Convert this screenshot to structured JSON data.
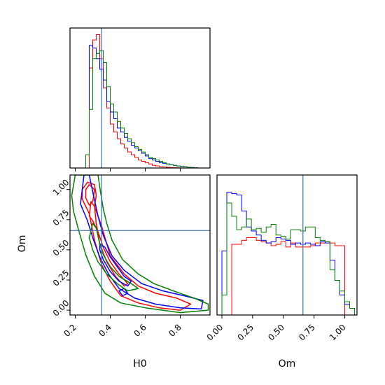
{
  "chart_data": {
    "type": "corner",
    "parameters": [
      "H0",
      "Om"
    ],
    "truth": {
      "H0": 0.35,
      "Om": 0.66
    },
    "truth_color": "#3a72b0",
    "series": [
      {
        "color": "#ff0000"
      },
      {
        "color": "#0000ff"
      },
      {
        "color": "#008000"
      }
    ],
    "h0_hist": {
      "type": "step-histogram",
      "xlim": [
        0.17,
        0.97
      ],
      "xticks": [
        0.2,
        0.4,
        0.6,
        0.8
      ],
      "bin_edges": [
        0.2,
        0.22,
        0.24,
        0.26,
        0.28,
        0.3,
        0.32,
        0.34,
        0.36,
        0.38,
        0.4,
        0.42,
        0.44,
        0.46,
        0.48,
        0.5,
        0.52,
        0.54,
        0.56,
        0.58,
        0.6,
        0.62,
        0.64,
        0.66,
        0.68,
        0.7,
        0.72,
        0.74,
        0.76,
        0.78,
        0.8,
        0.82,
        0.84,
        0.86,
        0.88,
        0.9,
        0.92,
        0.94
      ],
      "counts": [
        [
          0,
          0,
          0,
          0,
          0.75,
          0.96,
          1.0,
          0.82,
          0.6,
          0.45,
          0.33,
          0.27,
          0.22,
          0.18,
          0.15,
          0.12,
          0.1,
          0.08,
          0.06,
          0.05,
          0.04,
          0.03,
          0.02,
          0.015,
          0.01,
          0.008,
          0.005,
          0.003,
          0.002,
          0.001,
          0,
          0,
          0,
          0,
          0,
          0,
          0
        ],
        [
          0,
          0,
          0,
          0.1,
          0.92,
          0.9,
          0.82,
          0.74,
          0.66,
          0.5,
          0.42,
          0.37,
          0.3,
          0.27,
          0.23,
          0.2,
          0.17,
          0.15,
          0.13,
          0.11,
          0.09,
          0.07,
          0.06,
          0.05,
          0.04,
          0.035,
          0.03,
          0.025,
          0.02,
          0.015,
          0.012,
          0.009,
          0.006,
          0.004,
          0.002,
          0,
          0
        ],
        [
          0,
          0,
          0,
          0.1,
          0.44,
          0.82,
          0.86,
          0.88,
          0.79,
          0.61,
          0.48,
          0.42,
          0.35,
          0.3,
          0.26,
          0.22,
          0.19,
          0.16,
          0.14,
          0.12,
          0.1,
          0.08,
          0.07,
          0.06,
          0.05,
          0.04,
          0.03,
          0.025,
          0.02,
          0.015,
          0.01,
          0.008,
          0.005,
          0.003,
          0.002,
          0,
          0
        ]
      ]
    },
    "om_hist": {
      "type": "step-histogram",
      "xlim": [
        -0.04,
        1.1
      ],
      "xticks": [
        0.0,
        0.25,
        0.5,
        0.75,
        1.0
      ],
      "xtick_labels": [
        "0.00",
        "0.25",
        "0.50",
        "0.75",
        "1.00"
      ],
      "bin_edges": [
        0.0,
        0.04,
        0.08,
        0.12,
        0.16,
        0.2,
        0.24,
        0.28,
        0.32,
        0.36,
        0.4,
        0.44,
        0.48,
        0.52,
        0.56,
        0.6,
        0.64,
        0.68,
        0.72,
        0.76,
        0.8,
        0.84,
        0.88,
        0.92,
        0.96,
        1.0,
        1.04,
        1.08
      ],
      "counts": [
        [
          0,
          0,
          0.53,
          0.53,
          0.56,
          0.58,
          0.58,
          0.56,
          0.55,
          0.54,
          0.52,
          0.53,
          0.55,
          0.51,
          0.54,
          0.51,
          0.51,
          0.51,
          0.52,
          0.54,
          0.54,
          0.55,
          0.54,
          0.52,
          0.52,
          0,
          0
        ],
        [
          0.48,
          0.92,
          0.91,
          0.9,
          0.78,
          0.66,
          0.63,
          0.6,
          0.56,
          0.54,
          0.55,
          0.58,
          0.57,
          0.56,
          0.53,
          0.54,
          0.53,
          0.54,
          0.53,
          0.52,
          0.55,
          0.54,
          0.41,
          0.26,
          0.15,
          0.08,
          0.05
        ],
        [
          0.15,
          0.84,
          0.74,
          0.64,
          0.66,
          0.72,
          0.64,
          0.65,
          0.62,
          0.66,
          0.68,
          0.6,
          0.59,
          0.57,
          0.64,
          0.64,
          0.63,
          0.66,
          0.66,
          0.58,
          0.56,
          0.55,
          0.34,
          0.26,
          0.18,
          0.1,
          0.05
        ]
      ]
    },
    "joint": {
      "xlim": [
        0.17,
        0.97
      ],
      "ylim": [
        -0.04,
        1.12
      ],
      "xticks": [
        0.2,
        0.4,
        0.6,
        0.8
      ],
      "yticks": [
        0.0,
        0.25,
        0.5,
        0.75,
        1.0
      ],
      "ytick_labels": [
        "0.00",
        "0.25",
        "0.50",
        "0.75",
        "1.00"
      ],
      "contours": [
        {
          "series": 0,
          "points": [
            [
              0.24,
              1.0
            ],
            [
              0.27,
              1.06
            ],
            [
              0.31,
              1.04
            ],
            [
              0.32,
              0.95
            ],
            [
              0.31,
              0.86
            ],
            [
              0.35,
              0.7
            ],
            [
              0.4,
              0.45
            ],
            [
              0.48,
              0.3
            ],
            [
              0.56,
              0.2
            ],
            [
              0.66,
              0.14
            ],
            [
              0.78,
              0.1
            ],
            [
              0.86,
              0.05
            ],
            [
              0.8,
              0.0
            ],
            [
              0.68,
              0.02
            ],
            [
              0.56,
              0.06
            ],
            [
              0.46,
              0.12
            ],
            [
              0.4,
              0.24
            ],
            [
              0.35,
              0.38
            ],
            [
              0.31,
              0.58
            ],
            [
              0.28,
              0.8
            ],
            [
              0.24,
              0.92
            ]
          ]
        },
        {
          "series": 0,
          "points": [
            [
              0.26,
              1.0
            ],
            [
              0.28,
              1.04
            ],
            [
              0.31,
              1.0
            ],
            [
              0.3,
              0.9
            ],
            [
              0.28,
              0.87
            ],
            [
              0.26,
              0.93
            ]
          ]
        },
        {
          "series": 0,
          "points": [
            [
              0.28,
              0.78
            ],
            [
              0.29,
              0.9
            ],
            [
              0.31,
              0.86
            ],
            [
              0.32,
              0.72
            ],
            [
              0.34,
              0.55
            ],
            [
              0.38,
              0.4
            ],
            [
              0.43,
              0.28
            ],
            [
              0.48,
              0.2
            ],
            [
              0.5,
              0.22
            ],
            [
              0.45,
              0.3
            ],
            [
              0.4,
              0.4
            ],
            [
              0.36,
              0.52
            ],
            [
              0.33,
              0.65
            ],
            [
              0.3,
              0.74
            ]
          ]
        },
        {
          "series": 1,
          "points": [
            [
              0.23,
              0.88
            ],
            [
              0.25,
              1.12
            ],
            [
              0.28,
              1.12
            ],
            [
              0.3,
              0.98
            ],
            [
              0.33,
              0.78
            ],
            [
              0.36,
              0.62
            ],
            [
              0.41,
              0.45
            ],
            [
              0.48,
              0.33
            ],
            [
              0.58,
              0.22
            ],
            [
              0.7,
              0.16
            ],
            [
              0.82,
              0.12
            ],
            [
              0.93,
              0.08
            ],
            [
              0.92,
              0.01
            ],
            [
              0.8,
              0.02
            ],
            [
              0.66,
              0.05
            ],
            [
              0.54,
              0.1
            ],
            [
              0.45,
              0.18
            ],
            [
              0.39,
              0.3
            ],
            [
              0.34,
              0.44
            ],
            [
              0.3,
              0.6
            ],
            [
              0.27,
              0.74
            ]
          ]
        },
        {
          "series": 1,
          "points": [
            [
              0.34,
              0.55
            ],
            [
              0.37,
              0.52
            ],
            [
              0.4,
              0.44
            ],
            [
              0.44,
              0.36
            ],
            [
              0.48,
              0.28
            ],
            [
              0.52,
              0.24
            ],
            [
              0.5,
              0.2
            ],
            [
              0.45,
              0.24
            ],
            [
              0.4,
              0.32
            ],
            [
              0.36,
              0.42
            ],
            [
              0.34,
              0.5
            ]
          ]
        },
        {
          "series": 1,
          "points": [
            [
              0.45,
              0.16
            ],
            [
              0.48,
              0.18
            ],
            [
              0.5,
              0.14
            ],
            [
              0.47,
              0.12
            ]
          ]
        },
        {
          "series": 2,
          "points": [
            [
              0.18,
              0.95
            ],
            [
              0.2,
              1.12
            ],
            [
              0.33,
              1.12
            ],
            [
              0.34,
              1.02
            ],
            [
              0.36,
              0.84
            ],
            [
              0.38,
              0.72
            ],
            [
              0.41,
              0.58
            ],
            [
              0.47,
              0.42
            ],
            [
              0.56,
              0.3
            ],
            [
              0.65,
              0.22
            ],
            [
              0.76,
              0.16
            ],
            [
              0.88,
              0.1
            ],
            [
              0.96,
              0.05
            ],
            [
              0.96,
              0.0
            ],
            [
              0.8,
              -0.02
            ],
            [
              0.6,
              0.02
            ],
            [
              0.46,
              0.06
            ],
            [
              0.37,
              0.14
            ],
            [
              0.31,
              0.28
            ],
            [
              0.26,
              0.46
            ],
            [
              0.22,
              0.66
            ],
            [
              0.19,
              0.82
            ]
          ]
        },
        {
          "series": 2,
          "points": [
            [
              0.28,
              0.6
            ],
            [
              0.3,
              0.72
            ],
            [
              0.32,
              0.68
            ],
            [
              0.34,
              0.55
            ],
            [
              0.36,
              0.46
            ],
            [
              0.4,
              0.36
            ],
            [
              0.45,
              0.28
            ],
            [
              0.52,
              0.22
            ],
            [
              0.56,
              0.18
            ],
            [
              0.5,
              0.16
            ],
            [
              0.44,
              0.22
            ],
            [
              0.38,
              0.3
            ],
            [
              0.33,
              0.4
            ],
            [
              0.3,
              0.5
            ]
          ]
        }
      ]
    },
    "xlabels": {
      "h0": "H0",
      "om": "Om"
    },
    "ylabel": "Om"
  }
}
